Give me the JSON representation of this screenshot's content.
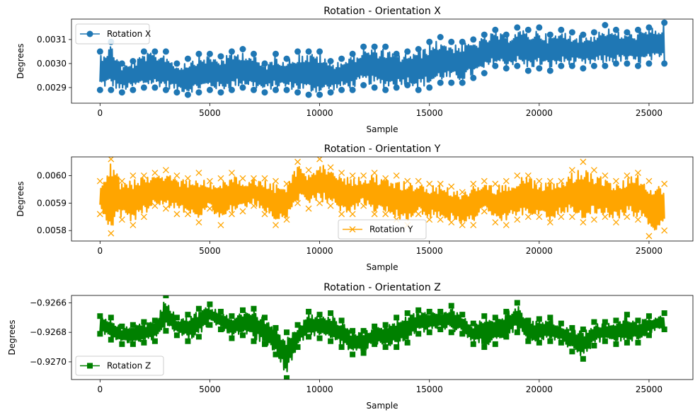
{
  "figure": {
    "background": "#ffffff"
  },
  "chart_data": [
    {
      "type": "line",
      "title": "Rotation - Orientation X",
      "xlabel": "Sample",
      "ylabel": "Degrees",
      "xlim": [
        -1300,
        27000
      ],
      "ylim": [
        0.002835,
        0.003185
      ],
      "xticks": [
        0,
        5000,
        10000,
        15000,
        20000,
        25000
      ],
      "xtick_labels": [
        "0",
        "5000",
        "10000",
        "15000",
        "20000",
        "25000"
      ],
      "yticks": [
        0.0029,
        0.003,
        0.0031
      ],
      "ytick_labels": [
        "0.0029",
        "0.0030",
        "0.0031"
      ],
      "legend": {
        "label": "Rotation X",
        "placement": "upper-left",
        "marker": "circle"
      },
      "series": [
        {
          "name": "Rotation X",
          "color": "#1f77b4",
          "marker": "circle",
          "x": [
            0,
            500,
            1000,
            1500,
            2000,
            2500,
            3000,
            3500,
            4000,
            4500,
            5000,
            5500,
            6000,
            6500,
            7000,
            7500,
            8000,
            8500,
            9000,
            9500,
            10000,
            10500,
            11000,
            11500,
            12000,
            12500,
            13000,
            13500,
            14000,
            14500,
            15000,
            15500,
            16000,
            16500,
            17000,
            17500,
            18000,
            18500,
            19000,
            19500,
            20000,
            20500,
            21000,
            21500,
            22000,
            22500,
            23000,
            23500,
            24000,
            24500,
            25000,
            25700
          ],
          "y_low": [
            0.00289,
            0.00289,
            0.00288,
            0.00289,
            0.0029,
            0.0029,
            0.00289,
            0.00288,
            0.00287,
            0.00288,
            0.00289,
            0.00288,
            0.00289,
            0.0029,
            0.00289,
            0.00288,
            0.00289,
            0.00289,
            0.00288,
            0.00287,
            0.00287,
            0.00288,
            0.00289,
            0.00289,
            0.00291,
            0.0029,
            0.00289,
            0.0029,
            0.00291,
            0.00289,
            0.0029,
            0.00292,
            0.00292,
            0.00292,
            0.00294,
            0.00296,
            0.00299,
            0.00298,
            0.00299,
            0.00297,
            0.00298,
            0.00297,
            0.00299,
            0.00299,
            0.00298,
            0.00299,
            0.00299,
            0.003,
            0.003,
            0.00299,
            0.003,
            0.003
          ],
          "y_high": [
            0.00305,
            0.00309,
            0.003,
            0.00301,
            0.00305,
            0.00305,
            0.00305,
            0.003,
            0.00302,
            0.00304,
            0.00304,
            0.00303,
            0.00305,
            0.00306,
            0.00304,
            0.003,
            0.00304,
            0.00302,
            0.00305,
            0.00305,
            0.00305,
            0.00301,
            0.00302,
            0.00304,
            0.00307,
            0.00307,
            0.00307,
            0.00304,
            0.00305,
            0.00306,
            0.00309,
            0.00311,
            0.00309,
            0.00309,
            0.0031,
            0.00312,
            0.00314,
            0.00312,
            0.00315,
            0.00314,
            0.00315,
            0.00312,
            0.00314,
            0.00313,
            0.00312,
            0.00313,
            0.00316,
            0.00314,
            0.00313,
            0.00314,
            0.00315,
            0.00317
          ]
        }
      ]
    },
    {
      "type": "line",
      "title": "Rotation - Orientation Y",
      "xlabel": "Sample",
      "ylabel": "Degrees",
      "xlim": [
        -1300,
        27000
      ],
      "ylim": [
        0.005762,
        0.006068
      ],
      "xticks": [
        0,
        5000,
        10000,
        15000,
        20000,
        25000
      ],
      "xtick_labels": [
        "0",
        "5000",
        "10000",
        "15000",
        "20000",
        "25000"
      ],
      "yticks": [
        0.0058,
        0.0059,
        0.006
      ],
      "ytick_labels": [
        "0.0058",
        "0.0059",
        "0.0060"
      ],
      "legend": {
        "label": "Rotation Y",
        "placement": "lower-center",
        "marker": "x"
      },
      "series": [
        {
          "name": "Rotation Y",
          "color": "#ffa500",
          "marker": "x",
          "x": [
            0,
            500,
            1000,
            1500,
            2000,
            2500,
            3000,
            3500,
            4000,
            4500,
            5000,
            5500,
            6000,
            6500,
            7000,
            7500,
            8000,
            8500,
            9000,
            9500,
            10000,
            10500,
            11000,
            11500,
            12000,
            12500,
            13000,
            13500,
            14000,
            14500,
            15000,
            15500,
            16000,
            16500,
            17000,
            17500,
            18000,
            18500,
            19000,
            19500,
            20000,
            20500,
            21000,
            21500,
            22000,
            22500,
            23000,
            23500,
            24000,
            24500,
            25000,
            25700
          ],
          "y_low": [
            0.00586,
            0.00579,
            0.00584,
            0.00582,
            0.00585,
            0.00589,
            0.00588,
            0.00586,
            0.00586,
            0.00583,
            0.00588,
            0.00582,
            0.00586,
            0.00587,
            0.00589,
            0.00586,
            0.00582,
            0.00584,
            0.0059,
            0.00588,
            0.0059,
            0.00589,
            0.00586,
            0.00586,
            0.00589,
            0.00586,
            0.00586,
            0.00584,
            0.00582,
            0.00586,
            0.00584,
            0.00584,
            0.00583,
            0.00582,
            0.00582,
            0.00587,
            0.00583,
            0.00582,
            0.00584,
            0.00585,
            0.00585,
            0.00583,
            0.00585,
            0.00585,
            0.00583,
            0.00584,
            0.00585,
            0.00583,
            0.00585,
            0.00584,
            0.00578,
            0.0058
          ],
          "y_high": [
            0.00598,
            0.00606,
            0.00598,
            0.006,
            0.006,
            0.00601,
            0.00602,
            0.006,
            0.00599,
            0.00601,
            0.00598,
            0.00599,
            0.00601,
            0.00599,
            0.00599,
            0.00599,
            0.00598,
            0.00597,
            0.00605,
            0.00602,
            0.00606,
            0.00603,
            0.00601,
            0.006,
            0.006,
            0.00601,
            0.00599,
            0.006,
            0.00598,
            0.00598,
            0.00597,
            0.00597,
            0.00596,
            0.00594,
            0.00597,
            0.00598,
            0.00597,
            0.00598,
            0.006,
            0.006,
            0.00598,
            0.00598,
            0.00598,
            0.00602,
            0.00605,
            0.00602,
            0.006,
            0.00598,
            0.006,
            0.00601,
            0.00598,
            0.00597
          ]
        }
      ]
    },
    {
      "type": "line",
      "title": "Rotation - Orientation Z",
      "xlabel": "Sample",
      "ylabel": "Degrees",
      "xlim": [
        -1300,
        27000
      ],
      "ylim": [
        -0.92712,
        -0.92655
      ],
      "xticks": [
        0,
        5000,
        10000,
        15000,
        20000,
        25000
      ],
      "xtick_labels": [
        "0",
        "5000",
        "10000",
        "15000",
        "20000",
        "25000"
      ],
      "yticks": [
        -0.927,
        -0.9268,
        -0.9266
      ],
      "ytick_labels": [
        "−0.9270",
        "−0.9268",
        "−0.9266"
      ],
      "legend": {
        "label": "Rotation Z",
        "placement": "lower-left",
        "marker": "square"
      },
      "series": [
        {
          "name": "Rotation Z",
          "color": "#008000",
          "marker": "square",
          "x": [
            0,
            500,
            1000,
            1500,
            2000,
            2500,
            3000,
            3500,
            4000,
            4500,
            5000,
            5500,
            6000,
            6500,
            7000,
            7500,
            8000,
            8500,
            9000,
            9500,
            10000,
            10500,
            11000,
            11500,
            12000,
            12500,
            13000,
            13500,
            14000,
            14500,
            15000,
            15500,
            16000,
            16500,
            17000,
            17500,
            18000,
            18500,
            19000,
            19500,
            20000,
            20500,
            21000,
            21500,
            22000,
            22500,
            23000,
            23500,
            24000,
            24500,
            25000,
            25700
          ],
          "y_low": [
            -0.92681,
            -0.92685,
            -0.92688,
            -0.92688,
            -0.92687,
            -0.92686,
            -0.92679,
            -0.92682,
            -0.92686,
            -0.92683,
            -0.92675,
            -0.92678,
            -0.92684,
            -0.92682,
            -0.92686,
            -0.92688,
            -0.92695,
            -0.92711,
            -0.9269,
            -0.92683,
            -0.92684,
            -0.92686,
            -0.9269,
            -0.92695,
            -0.92694,
            -0.92688,
            -0.9269,
            -0.9269,
            -0.92687,
            -0.92681,
            -0.9268,
            -0.92678,
            -0.9268,
            -0.92681,
            -0.92688,
            -0.9269,
            -0.92688,
            -0.92683,
            -0.9268,
            -0.92686,
            -0.92687,
            -0.92686,
            -0.92687,
            -0.92693,
            -0.92698,
            -0.92689,
            -0.92686,
            -0.92688,
            -0.92687,
            -0.92687,
            -0.92682,
            -0.92678
          ],
          "y_high": [
            -0.92669,
            -0.9267,
            -0.92676,
            -0.92675,
            -0.92673,
            -0.92672,
            -0.92655,
            -0.9267,
            -0.92668,
            -0.92664,
            -0.92661,
            -0.92666,
            -0.92669,
            -0.92665,
            -0.92664,
            -0.9267,
            -0.92677,
            -0.9268,
            -0.92675,
            -0.92666,
            -0.92668,
            -0.92667,
            -0.92672,
            -0.92679,
            -0.92679,
            -0.92676,
            -0.92675,
            -0.9267,
            -0.92667,
            -0.92665,
            -0.92666,
            -0.92666,
            -0.92662,
            -0.92668,
            -0.92674,
            -0.92669,
            -0.9267,
            -0.92666,
            -0.9266,
            -0.92672,
            -0.92671,
            -0.9267,
            -0.92674,
            -0.92677,
            -0.92678,
            -0.92673,
            -0.92673,
            -0.92672,
            -0.92668,
            -0.92672,
            -0.92669,
            -0.92667
          ]
        }
      ]
    }
  ]
}
